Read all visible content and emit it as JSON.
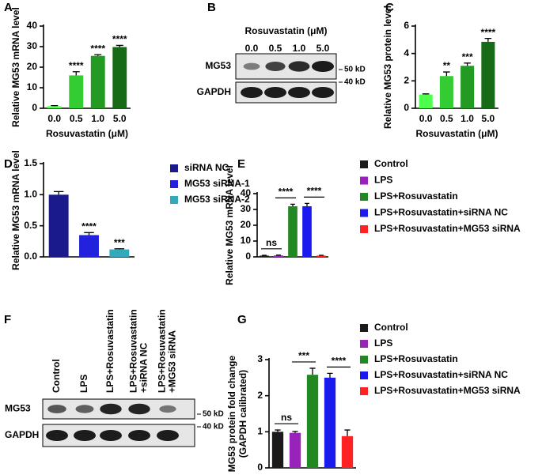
{
  "chart_data": [
    {
      "panel": "A",
      "type": "bar",
      "categories": [
        "0.0",
        "0.5",
        "1.0",
        "5.0"
      ],
      "values": [
        1,
        16,
        25.5,
        29.8
      ],
      "errors": [
        0.3,
        1.8,
        0.6,
        0.8
      ],
      "colors": [
        "#4dff4d",
        "#33cc33",
        "#239b23",
        "#176b17"
      ],
      "significance": [
        null,
        "****",
        "****",
        "****"
      ],
      "ylim": [
        0,
        40
      ],
      "yticks": [
        0,
        10,
        20,
        30,
        40
      ],
      "y_label": [
        "Relative MG53 mRNA level"
      ],
      "x_label": "Rosuvastatin (μM)"
    },
    {
      "panel": "C",
      "type": "bar",
      "categories": [
        "0.0",
        "0.5",
        "1.0",
        "5.0"
      ],
      "values": [
        1,
        2.35,
        3.1,
        4.85
      ],
      "errors": [
        0.05,
        0.3,
        0.2,
        0.25
      ],
      "colors": [
        "#4dff4d",
        "#33cc33",
        "#239b23",
        "#176b17"
      ],
      "significance": [
        null,
        "**",
        "***",
        "****"
      ],
      "ylim": [
        0,
        6
      ],
      "yticks": [
        0,
        2,
        4,
        6
      ],
      "y_label": [
        "Relative MG53 protein level"
      ],
      "x_label": "Rosuvastatin (μM)"
    },
    {
      "panel": "D",
      "type": "bar",
      "legend": true,
      "categories": [
        "siRNA NC",
        "MG53 siRNA-1",
        "MG53 siRNA-2"
      ],
      "values": [
        1,
        0.35,
        0.12
      ],
      "errors": [
        0.05,
        0.04,
        0.01
      ],
      "colors": [
        "#1a1a8c",
        "#2222dd",
        "#33aabb"
      ],
      "significance": [
        null,
        "****",
        "***"
      ],
      "ylim": [
        0,
        1.5
      ],
      "yticks": [
        {
          "value": 0,
          "label": "0.0"
        },
        0.5,
        {
          "value": 1,
          "label": "1.0"
        },
        1.5
      ],
      "y_label": [
        "Relative MG53 mRNA level"
      ]
    },
    {
      "panel": "E",
      "type": "bar",
      "legend": true,
      "categories": [
        "Control",
        "LPS",
        "LPS+Rosuvastatin",
        "LPS+Rosuvastatin+siRNA NC",
        "LPS+Rosuvastatin+MG53 siRNA"
      ],
      "values": [
        0.8,
        0.9,
        32,
        32,
        0.8
      ],
      "errors": [
        0.2,
        0.2,
        1.3,
        1.8,
        0.2
      ],
      "colors": [
        "#1a1a1a",
        "#9922bb",
        "#228822",
        "#1a1aee",
        "#ff2222"
      ],
      "comparisons": [
        {
          "from": 0,
          "to": 1,
          "label": "ns"
        },
        {
          "from": 1,
          "to": 2,
          "label": "****"
        },
        {
          "from": 3,
          "to": 4,
          "label": "****"
        }
      ],
      "ylim": [
        0,
        40
      ],
      "yticks": [
        0,
        10,
        20,
        30,
        40
      ],
      "y_label": [
        "Relative MG53 mRNA level"
      ]
    },
    {
      "panel": "G",
      "type": "bar",
      "legend": true,
      "categories": [
        "Control",
        "LPS",
        "LPS+Rosuvastatin",
        "LPS+Rosuvastatin+siRNA NC",
        "LPS+Rosuvastatin+MG53 siRNA"
      ],
      "values": [
        1.0,
        0.97,
        2.58,
        2.5,
        0.88
      ],
      "errors": [
        0.05,
        0.04,
        0.18,
        0.12,
        0.17
      ],
      "colors": [
        "#1a1a1a",
        "#9922bb",
        "#228822",
        "#1a1aee",
        "#ff2222"
      ],
      "comparisons": [
        {
          "from": 0,
          "to": 1,
          "label": "ns"
        },
        {
          "from": 1,
          "to": 2,
          "label": "***"
        },
        {
          "from": 3,
          "to": 4,
          "label": "****"
        }
      ],
      "ylim": [
        0,
        3
      ],
      "yticks": [
        0,
        1,
        2,
        3
      ],
      "y_label": [
        "MG53 protein fold change",
        "(GAPDH calibrated)"
      ]
    }
  ],
  "blots": [
    {
      "panel": "B",
      "title": "Rosuvastatin (μM)",
      "lanes": [
        [
          "0.0"
        ],
        [
          "0.5"
        ],
        [
          "1.0"
        ],
        [
          "5.0"
        ]
      ],
      "rows": [
        "MG53",
        "GAPDH"
      ],
      "markers": [
        "50 kD",
        "40 kD"
      ]
    },
    {
      "panel": "F",
      "lanes": [
        [
          "Control"
        ],
        [
          "LPS"
        ],
        [
          "LPS+Rosuvastatin"
        ],
        [
          "LPS+Rosuvastatin",
          "+siRNA NC"
        ],
        [
          "LPS+Rosuvastatin",
          "+MG53 siRNA"
        ]
      ],
      "rows": [
        "MG53",
        "GAPDH"
      ],
      "markers": [
        "50 kD",
        "40 kD"
      ]
    }
  ]
}
